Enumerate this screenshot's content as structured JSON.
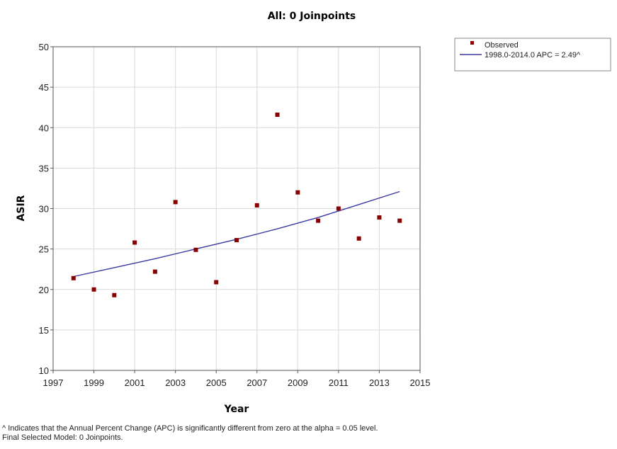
{
  "chart_data": {
    "type": "scatter",
    "title": "All: 0 Joinpoints",
    "xlabel": "Year",
    "ylabel": "ASIR",
    "xlim": [
      1997,
      2015
    ],
    "ylim": [
      10,
      50
    ],
    "xticks": [
      1997,
      1999,
      2001,
      2003,
      2005,
      2007,
      2009,
      2011,
      2013,
      2015
    ],
    "yticks": [
      10,
      15,
      20,
      25,
      30,
      35,
      40,
      45,
      50
    ],
    "grid": true,
    "legend_position": "top-right, outside plot",
    "series": [
      {
        "name": "Observed",
        "kind": "points",
        "color": "#8b0000",
        "x": [
          1998,
          1999,
          2000,
          2001,
          2002,
          2003,
          2004,
          2005,
          2006,
          2007,
          2008,
          2009,
          2010,
          2011,
          2012,
          2013,
          2014
        ],
        "y": [
          21.4,
          20.0,
          19.3,
          25.8,
          22.2,
          30.8,
          24.9,
          20.9,
          26.1,
          30.4,
          41.6,
          32.0,
          28.5,
          30.0,
          26.3,
          28.9,
          28.5
        ]
      },
      {
        "name": "1998.0-2014.0 APC  = 2.49^",
        "kind": "line",
        "color": "#3a3aa0",
        "x": [
          1998,
          2000,
          2002,
          2004,
          2006,
          2008,
          2010,
          2012,
          2014
        ],
        "y": [
          21.6,
          22.7,
          23.8,
          25.0,
          26.2,
          27.5,
          28.9,
          30.5,
          32.1
        ]
      }
    ]
  },
  "footnotes": {
    "line1": "^ Indicates that the Annual Percent Change (APC) is significantly different from zero at the alpha = 0.05 level.",
    "line2": "Final Selected Model: 0 Joinpoints."
  }
}
